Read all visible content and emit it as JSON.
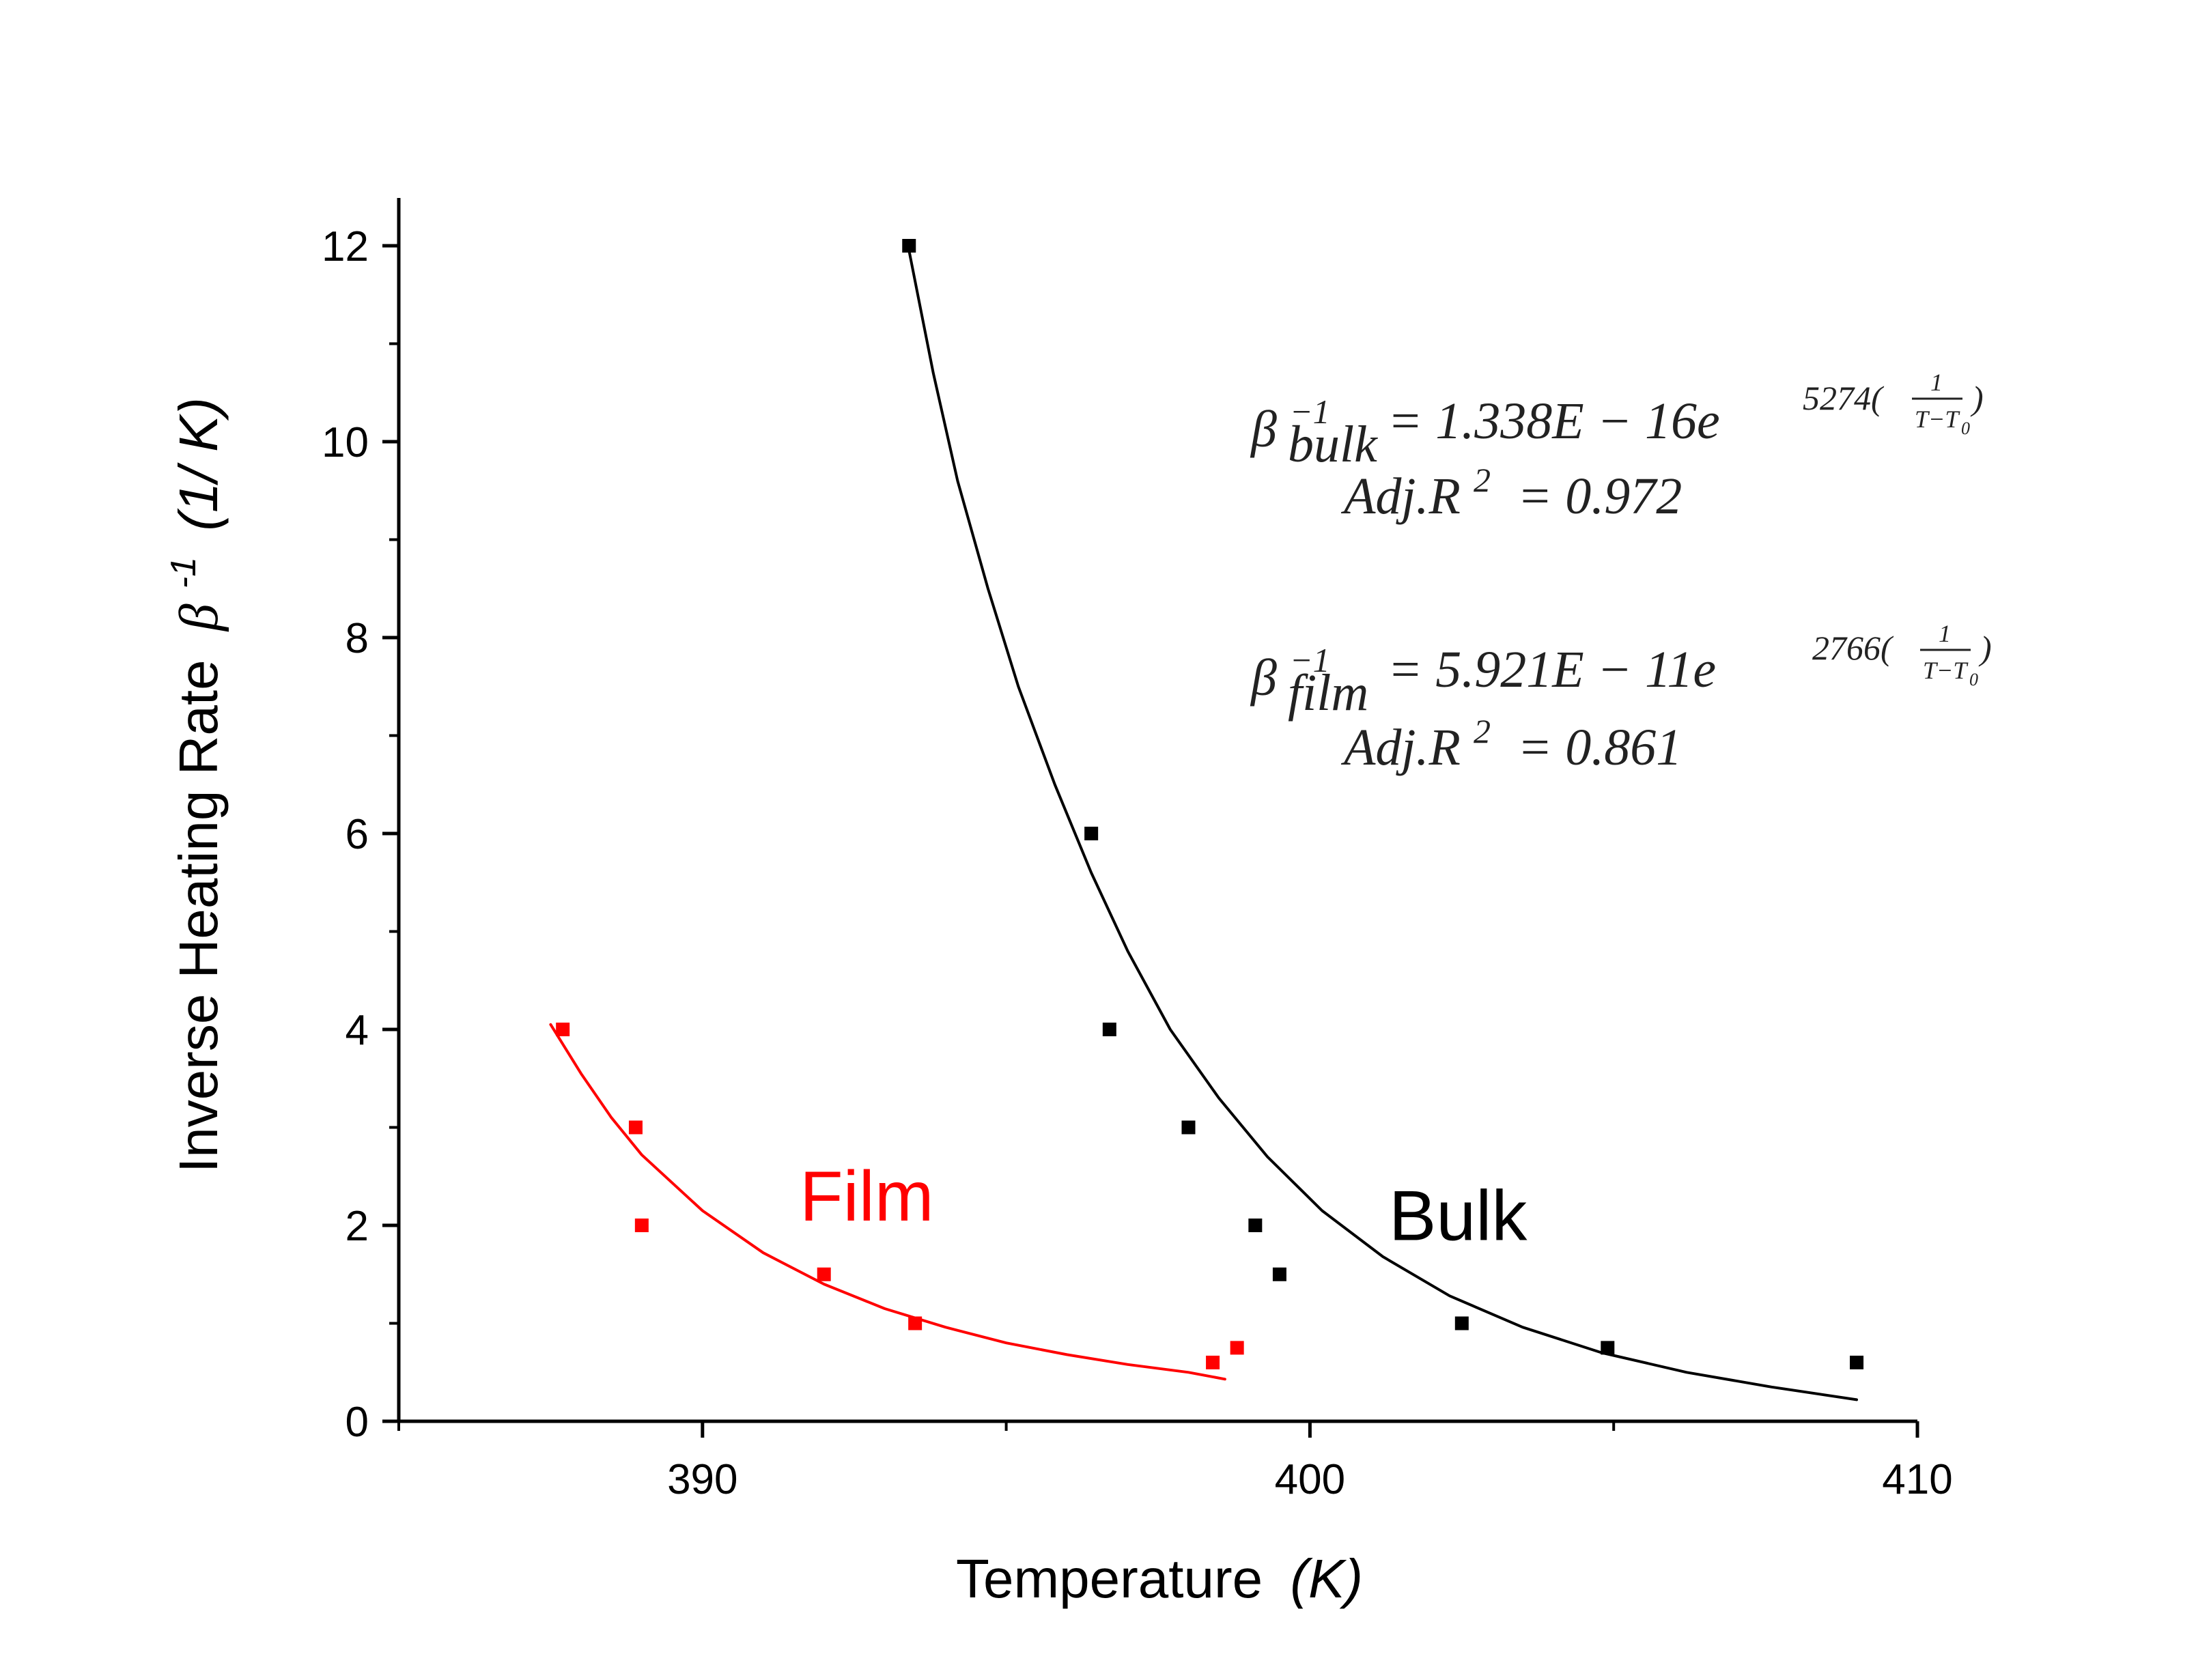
{
  "chart_data": {
    "type": "scatter",
    "xlabel": "Temperature",
    "xlabel_unit": "(K)",
    "ylabel": "Inverse Heating Rate",
    "ylabel_symbol": "β",
    "ylabel_symbol_exp": "-1",
    "ylabel_unit": "(1/ K)",
    "xlim": [
      385,
      410
    ],
    "ylim": [
      0,
      12.5
    ],
    "x_ticks": [
      390,
      400,
      410
    ],
    "x_tick_labels": [
      "390",
      "400",
      "410"
    ],
    "x_minor_ticks": [
      385,
      395,
      405
    ],
    "y_ticks": [
      0,
      2,
      4,
      6,
      8,
      10,
      12
    ],
    "y_tick_labels": [
      "0",
      "2",
      "4",
      "6",
      "8",
      "10",
      "12"
    ],
    "y_minor_ticks": [
      1,
      3,
      5,
      7,
      9,
      11
    ],
    "grid": false,
    "legend": "none",
    "series": [
      {
        "name": "Film",
        "color": "#ff0000",
        "marker": "square",
        "points": [
          {
            "x": 387.7,
            "y": 4.0
          },
          {
            "x": 388.9,
            "y": 3.0
          },
          {
            "x": 389.0,
            "y": 2.0
          },
          {
            "x": 392.0,
            "y": 1.5
          },
          {
            "x": 393.5,
            "y": 1.0
          },
          {
            "x": 398.4,
            "y": 0.6
          },
          {
            "x": 398.8,
            "y": 0.75
          }
        ],
        "fit": {
          "points": [
            {
              "x": 387.5,
              "y": 4.05
            },
            {
              "x": 388.0,
              "y": 3.55
            },
            {
              "x": 388.5,
              "y": 3.1
            },
            {
              "x": 389.0,
              "y": 2.72
            },
            {
              "x": 390.0,
              "y": 2.15
            },
            {
              "x": 391.0,
              "y": 1.72
            },
            {
              "x": 392.0,
              "y": 1.4
            },
            {
              "x": 393.0,
              "y": 1.15
            },
            {
              "x": 394.0,
              "y": 0.96
            },
            {
              "x": 395.0,
              "y": 0.8
            },
            {
              "x": 396.0,
              "y": 0.68
            },
            {
              "x": 397.0,
              "y": 0.58
            },
            {
              "x": 398.0,
              "y": 0.5
            },
            {
              "x": 398.6,
              "y": 0.43
            }
          ]
        }
      },
      {
        "name": "Bulk",
        "color": "#000000",
        "marker": "square",
        "points": [
          {
            "x": 393.4,
            "y": 12.0
          },
          {
            "x": 396.4,
            "y": 6.0
          },
          {
            "x": 396.7,
            "y": 4.0
          },
          {
            "x": 398.0,
            "y": 3.0
          },
          {
            "x": 399.1,
            "y": 2.0
          },
          {
            "x": 399.5,
            "y": 1.5
          },
          {
            "x": 402.5,
            "y": 1.0
          },
          {
            "x": 404.9,
            "y": 0.75
          },
          {
            "x": 409.0,
            "y": 0.6
          }
        ],
        "fit": {
          "points": [
            {
              "x": 393.4,
              "y": 11.95
            },
            {
              "x": 393.8,
              "y": 10.7
            },
            {
              "x": 394.2,
              "y": 9.6
            },
            {
              "x": 394.7,
              "y": 8.5
            },
            {
              "x": 395.2,
              "y": 7.5
            },
            {
              "x": 395.8,
              "y": 6.5
            },
            {
              "x": 396.4,
              "y": 5.6
            },
            {
              "x": 397.0,
              "y": 4.8
            },
            {
              "x": 397.7,
              "y": 4.0
            },
            {
              "x": 398.5,
              "y": 3.3
            },
            {
              "x": 399.3,
              "y": 2.7
            },
            {
              "x": 400.2,
              "y": 2.15
            },
            {
              "x": 401.2,
              "y": 1.68
            },
            {
              "x": 402.3,
              "y": 1.28
            },
            {
              "x": 403.5,
              "y": 0.96
            },
            {
              "x": 404.8,
              "y": 0.7
            },
            {
              "x": 406.2,
              "y": 0.5
            },
            {
              "x": 407.6,
              "y": 0.35
            },
            {
              "x": 409.0,
              "y": 0.22
            }
          ]
        }
      }
    ],
    "annotations": [
      {
        "text": "Film",
        "color": "#ff0000",
        "x": 391.6,
        "y": 2.05
      },
      {
        "text": "Bulk",
        "color": "#000000",
        "x": 401.3,
        "y": 1.85
      }
    ],
    "equations": [
      {
        "beta": "β",
        "exp": "−1",
        "sub": "bulk",
        "body": "= 1.338E − 16e",
        "power": "5274(",
        "frac_num": "1",
        "frac_den": "T−T",
        "frac_den_sub": "0",
        "close": ")",
        "r2_text": "Adj.R",
        "r2_sup": "2",
        "r2_value": "= 0.972"
      },
      {
        "beta": "β",
        "exp": "−1",
        "sub": "film",
        "body": "= 5.921E − 11e",
        "power": "2766(",
        "frac_num": "1",
        "frac_den": "T−T",
        "frac_den_sub": "0",
        "close": ")",
        "r2_text": "Adj.R",
        "r2_sup": "2",
        "r2_value": "= 0.861"
      }
    ]
  }
}
